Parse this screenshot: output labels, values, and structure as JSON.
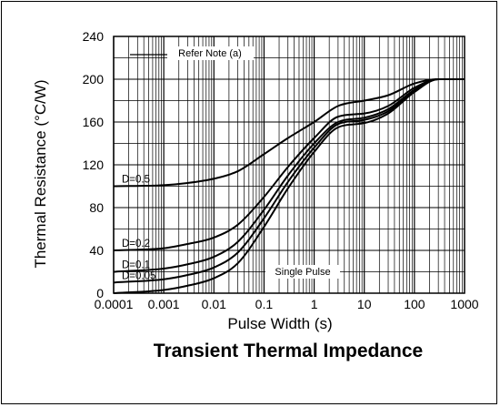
{
  "chart_data": {
    "type": "line",
    "title": "Transient Thermal Impedance",
    "xlabel": "Pulse Width (s)",
    "ylabel": "Thermal Resistance (°C/W)",
    "x_scale": "log",
    "xlim": [
      0.0001,
      1000
    ],
    "ylim": [
      0,
      240
    ],
    "x_ticks": [
      "0.0001",
      "0.001",
      "0.01",
      "0.1",
      "1",
      "10",
      "100",
      "1000"
    ],
    "x_tick_values": [
      0.0001,
      0.001,
      0.01,
      0.1,
      1,
      10,
      100,
      1000
    ],
    "y_ticks": [
      0,
      40,
      80,
      120,
      160,
      200,
      240
    ],
    "grid": true,
    "annotations": {
      "note": "Refer Note (a)",
      "single_pulse": "Single Pulse"
    },
    "series": [
      {
        "name": "D=0.5",
        "x": [
          0.0001,
          0.001,
          0.003,
          0.01,
          0.03,
          0.1,
          0.3,
          1,
          3,
          10,
          30,
          100,
          300,
          1000
        ],
        "y": [
          100,
          101,
          103,
          107,
          114,
          130,
          145,
          160,
          175,
          180,
          185,
          196,
          200,
          200
        ]
      },
      {
        "name": "D=0.2",
        "x": [
          0.0001,
          0.001,
          0.003,
          0.01,
          0.03,
          0.1,
          0.3,
          1,
          3,
          10,
          30,
          100,
          300,
          1000
        ],
        "y": [
          40,
          42,
          46,
          52,
          64,
          90,
          118,
          145,
          165,
          168,
          175,
          192,
          200,
          200
        ]
      },
      {
        "name": "D=0.1",
        "x": [
          0.0001,
          0.001,
          0.003,
          0.01,
          0.03,
          0.1,
          0.3,
          1,
          3,
          10,
          30,
          100,
          300,
          1000
        ],
        "y": [
          20,
          23,
          27,
          34,
          48,
          78,
          110,
          140,
          160,
          164,
          172,
          190,
          200,
          200
        ]
      },
      {
        "name": "D=0.05",
        "x": [
          0.0001,
          0.001,
          0.003,
          0.01,
          0.03,
          0.1,
          0.3,
          1,
          3,
          10,
          30,
          100,
          300,
          1000
        ],
        "y": [
          10,
          13,
          17,
          24,
          38,
          70,
          104,
          136,
          158,
          162,
          170,
          189,
          200,
          200
        ]
      },
      {
        "name": "Single Pulse",
        "x": [
          0.0001,
          0.001,
          0.003,
          0.01,
          0.03,
          0.1,
          0.3,
          1,
          3,
          10,
          30,
          100,
          300,
          1000
        ],
        "y": [
          0,
          3,
          7,
          14,
          28,
          62,
          98,
          132,
          155,
          159,
          168,
          188,
          200,
          200
        ]
      }
    ]
  }
}
